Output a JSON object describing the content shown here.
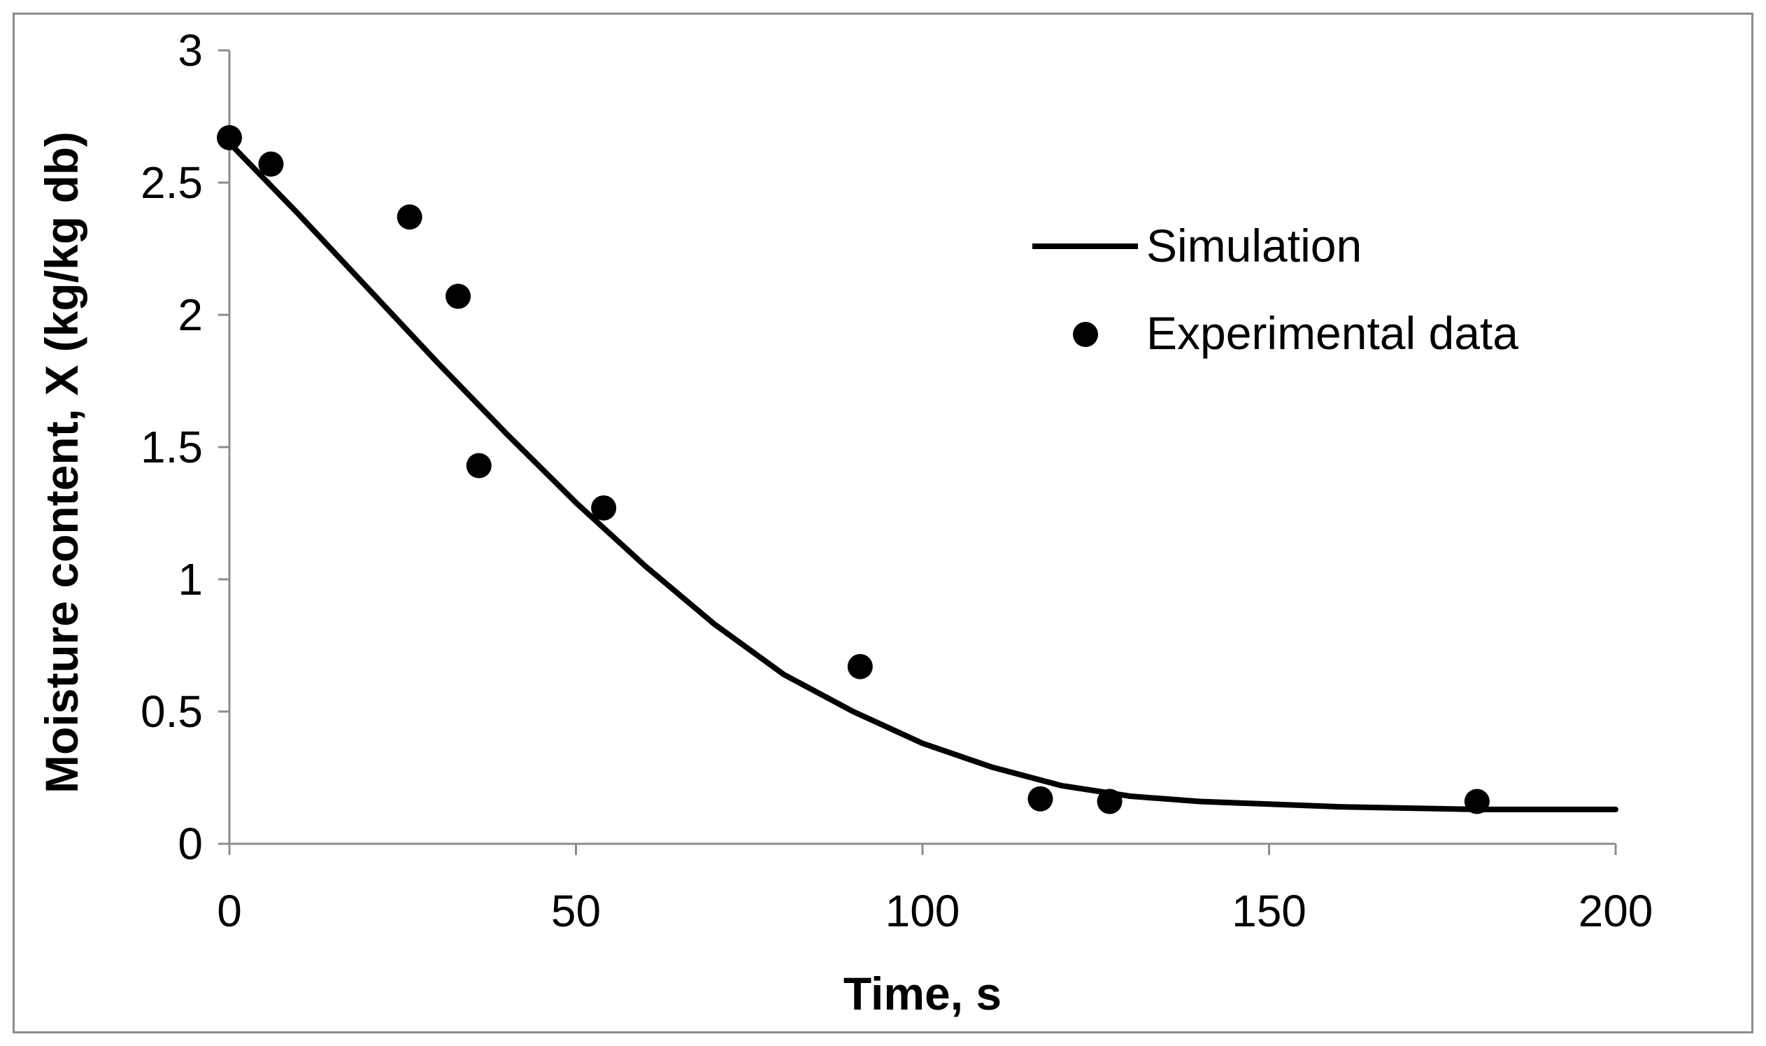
{
  "chart_data": {
    "type": "scatter",
    "title": "",
    "xlabel": "Time, s",
    "ylabel": "Moisture content, X (kg/kg db)",
    "xlim": [
      0,
      200
    ],
    "ylim": [
      0,
      3
    ],
    "x_ticks": [
      0,
      50,
      100,
      150,
      200
    ],
    "y_ticks": [
      0,
      0.5,
      1,
      1.5,
      2,
      2.5,
      3
    ],
    "x_tick_labels": [
      "0",
      "50",
      "100",
      "150",
      "200"
    ],
    "y_tick_labels": [
      "0",
      "0.5",
      "1",
      "1.5",
      "2",
      "2.5",
      "3"
    ],
    "grid": false,
    "legend_position": "top-right",
    "series": [
      {
        "name": "Simulation",
        "type": "line",
        "color": "#000000",
        "x": [
          0,
          10,
          20,
          30,
          40,
          50,
          60,
          70,
          80,
          90,
          100,
          110,
          120,
          130,
          140,
          150,
          160,
          170,
          180,
          190,
          200
        ],
        "y": [
          2.65,
          2.38,
          2.1,
          1.82,
          1.55,
          1.29,
          1.05,
          0.83,
          0.64,
          0.5,
          0.38,
          0.29,
          0.22,
          0.18,
          0.16,
          0.15,
          0.14,
          0.135,
          0.13,
          0.13,
          0.13
        ]
      },
      {
        "name": "Experimental data",
        "type": "scatter",
        "color": "#000000",
        "x": [
          0,
          6,
          26,
          33,
          36,
          54,
          91,
          117,
          127,
          180
        ],
        "y": [
          2.67,
          2.57,
          2.37,
          2.07,
          1.43,
          1.27,
          0.67,
          0.17,
          0.16,
          0.16
        ]
      }
    ]
  }
}
